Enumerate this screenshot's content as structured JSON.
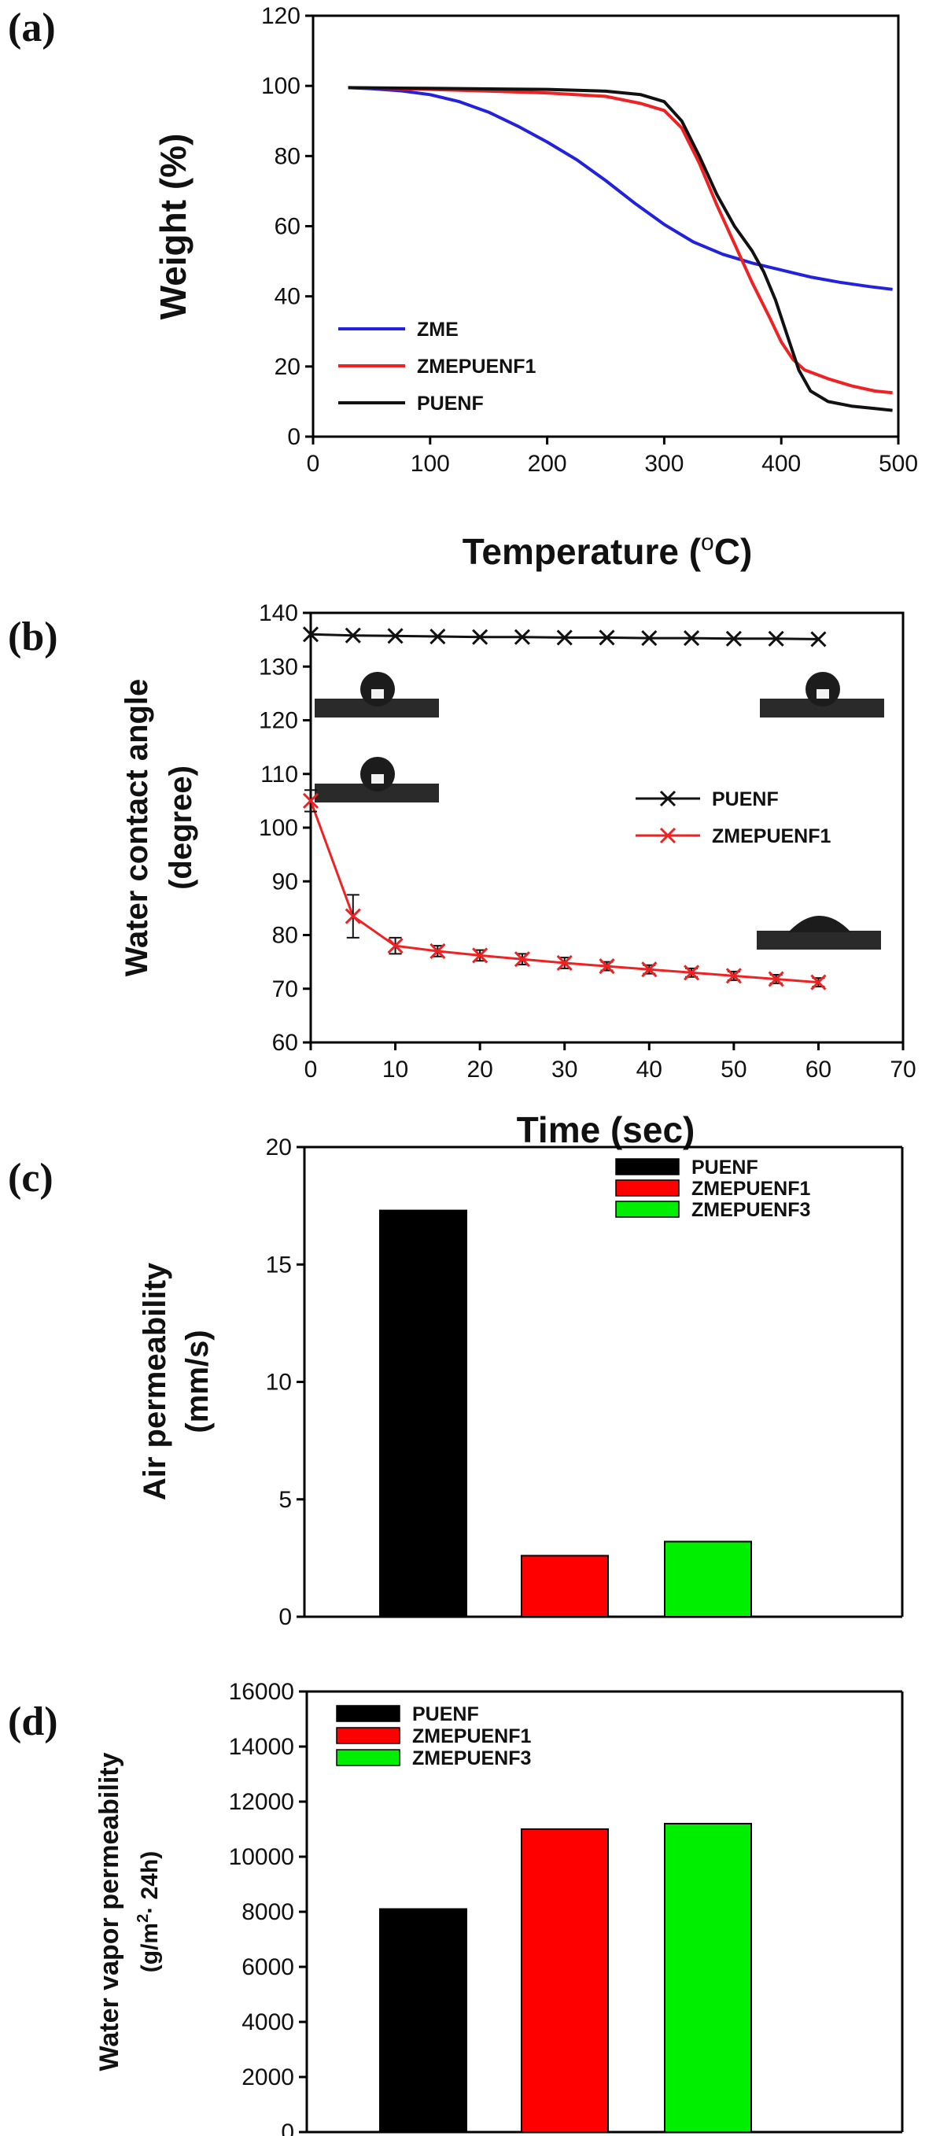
{
  "panels": {
    "a": {
      "letter": "(a)",
      "ylabel": "Weight (%)",
      "xlabel_main": "Temperature (",
      "xlabel_sup": "o",
      "xlabel_end": "C)"
    },
    "b": {
      "letter": "(b)",
      "ylabel_line1": "Water contact angle",
      "ylabel_line2": "(degree)",
      "xlabel": "Time (sec)"
    },
    "c": {
      "letter": "(c)",
      "ylabel_line1": "Air permeability",
      "ylabel_line2": "(mm/s)"
    },
    "d": {
      "letter": "(d)",
      "ylabel_line1": "Water vapor permeability",
      "ylabel_line2_a": "(g/m",
      "ylabel_line2_sup": "2",
      "ylabel_line2_b": "· 24h)"
    }
  },
  "chart_data": [
    {
      "type": "line",
      "panel": "a",
      "xlabel": "Temperature (oC)",
      "ylabel": "Weight (%)",
      "xlim": [
        0,
        500
      ],
      "ylim": [
        0,
        120
      ],
      "xticks": [
        0,
        100,
        200,
        300,
        400,
        500
      ],
      "yticks": [
        0,
        20,
        40,
        60,
        80,
        100,
        120
      ],
      "legend_position": "lower-left",
      "series": [
        {
          "name": "ZME",
          "color": "#2222dd",
          "x": [
            30,
            50,
            75,
            100,
            125,
            150,
            175,
            200,
            225,
            250,
            275,
            300,
            325,
            350,
            375,
            400,
            425,
            450,
            475,
            495
          ],
          "y": [
            99.5,
            99.2,
            98.6,
            97.5,
            95.5,
            92.5,
            88.5,
            84,
            79,
            73,
            66.5,
            60.5,
            55.5,
            52,
            49.5,
            47.5,
            45.5,
            44,
            42.8,
            42
          ]
        },
        {
          "name": "ZMEPUENF1",
          "color": "#ee2222",
          "x": [
            30,
            100,
            200,
            250,
            280,
            300,
            315,
            330,
            345,
            360,
            375,
            390,
            400,
            410,
            420,
            440,
            460,
            480,
            495
          ],
          "y": [
            99.5,
            99,
            98,
            97,
            95,
            93,
            88,
            78,
            66,
            55,
            44,
            34,
            27,
            22,
            19,
            16.5,
            14.5,
            13,
            12.5
          ]
        },
        {
          "name": "PUENF",
          "color": "#111111",
          "x": [
            30,
            100,
            200,
            250,
            280,
            300,
            315,
            330,
            345,
            360,
            375,
            385,
            395,
            405,
            415,
            425,
            440,
            460,
            480,
            495
          ],
          "y": [
            99.5,
            99.3,
            99,
            98.5,
            97.5,
            95.5,
            90,
            80,
            69,
            60,
            53,
            47,
            39,
            29,
            19,
            13,
            10,
            8.7,
            8,
            7.5
          ]
        }
      ]
    },
    {
      "type": "line",
      "panel": "b",
      "xlabel": "Time (sec)",
      "ylabel": "Water contact angle (degree)",
      "xlim": [
        0,
        70
      ],
      "ylim": [
        60,
        140
      ],
      "xticks": [
        0,
        10,
        20,
        30,
        40,
        50,
        60,
        70
      ],
      "yticks": [
        60,
        70,
        80,
        90,
        100,
        110,
        120,
        130,
        140
      ],
      "legend_position": "center-right",
      "series": [
        {
          "name": "PUENF",
          "color": "#111111",
          "marker": "x",
          "x": [
            0,
            5,
            10,
            15,
            20,
            25,
            30,
            35,
            40,
            45,
            50,
            55,
            60
          ],
          "y": [
            136,
            135.8,
            135.7,
            135.6,
            135.5,
            135.5,
            135.4,
            135.4,
            135.3,
            135.3,
            135.2,
            135.2,
            135.1
          ]
        },
        {
          "name": "ZMEPUENF1",
          "color": "#ee2222",
          "marker": "x",
          "x": [
            0,
            5,
            10,
            15,
            20,
            25,
            30,
            35,
            40,
            45,
            50,
            55,
            60
          ],
          "y": [
            105,
            83.5,
            78,
            77,
            76.2,
            75.5,
            74.8,
            74.2,
            73.6,
            73,
            72.4,
            71.8,
            71.2
          ],
          "error": [
            2,
            4,
            1.5,
            1,
            1,
            1,
            1,
            0.8,
            0.8,
            0.8,
            0.8,
            0.8,
            0.8
          ]
        }
      ]
    },
    {
      "type": "bar",
      "panel": "c",
      "ylabel": "Air permeability (mm/s)",
      "ylim": [
        0,
        20
      ],
      "yticks": [
        0,
        5,
        10,
        15,
        20
      ],
      "legend_position": "top-right",
      "categories": [
        "PUENF",
        "ZMEPUENF1",
        "ZMEPUENF3"
      ],
      "colors": [
        "#000000",
        "#ff0000",
        "#00ee00"
      ],
      "values": [
        17.3,
        2.6,
        3.2
      ]
    },
    {
      "type": "bar",
      "panel": "d",
      "ylabel": "Water vapor permeability (g/m2· 24h)",
      "ylim": [
        0,
        16000
      ],
      "yticks": [
        0,
        2000,
        4000,
        6000,
        8000,
        10000,
        12000,
        14000,
        16000
      ],
      "legend_position": "top-left",
      "categories": [
        "PUENF",
        "ZMEPUENF1",
        "ZMEPUENF3"
      ],
      "colors": [
        "#000000",
        "#ff0000",
        "#00ee00"
      ],
      "values": [
        8100,
        11000,
        11200
      ]
    }
  ]
}
